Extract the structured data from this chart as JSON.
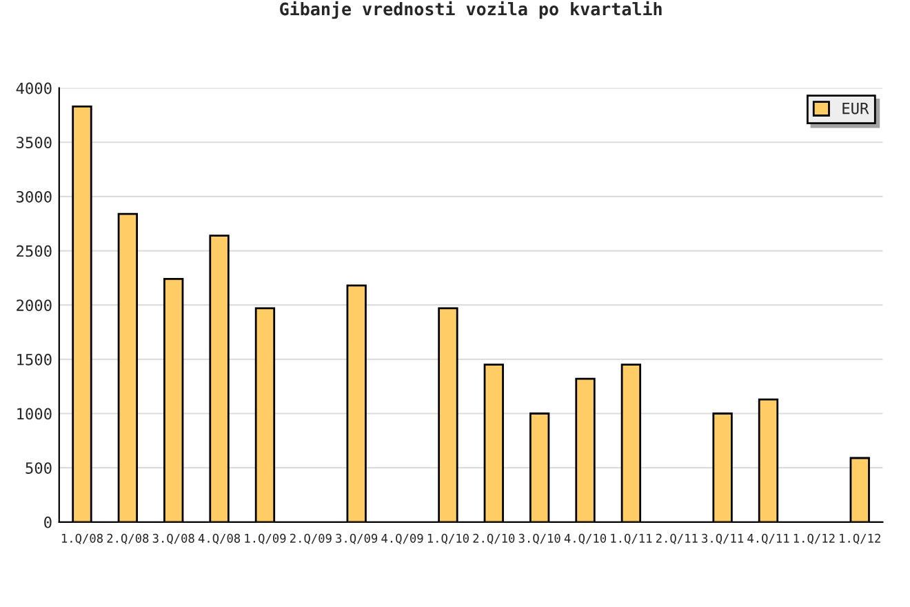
{
  "chart_data": {
    "type": "bar",
    "title": "Gibanje vrednosti vozila po kvartalih",
    "categories": [
      "1.Q/08",
      "2.Q/08",
      "3.Q/08",
      "4.Q/08",
      "1.Q/09",
      "2.Q/09",
      "3.Q/09",
      "4.Q/09",
      "1.Q/10",
      "2.Q/10",
      "3.Q/10",
      "4.Q/10",
      "1.Q/11",
      "2.Q/11",
      "3.Q/11",
      "4.Q/11",
      "1.Q/12",
      "1.Q/12"
    ],
    "series": [
      {
        "name": "EUR",
        "color": "#ffcc66",
        "values": [
          3830,
          2840,
          2240,
          2640,
          1970,
          null,
          2180,
          null,
          1970,
          1450,
          1000,
          1320,
          1450,
          null,
          1000,
          1130,
          null,
          590
        ]
      }
    ],
    "ylim": [
      0,
      4000
    ],
    "yticks": [
      0,
      500,
      1000,
      1500,
      2000,
      2500,
      3000,
      3500,
      4000
    ],
    "grid": "y",
    "legend": "top right"
  }
}
